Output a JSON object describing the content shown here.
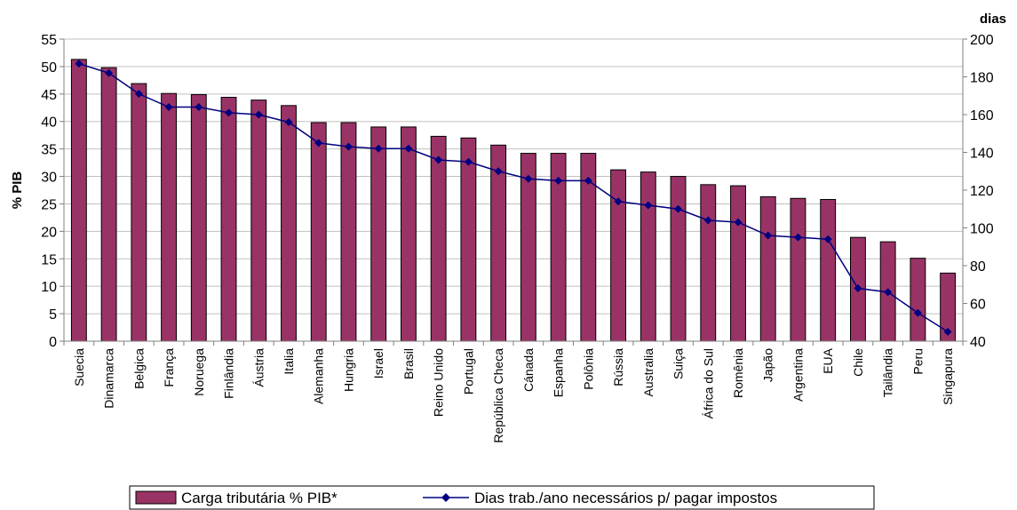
{
  "colors": {
    "bar": "#993366",
    "line": "#000080",
    "axis": "#808080",
    "grid": "#c0c0c0"
  },
  "chart_data": {
    "type": "bar",
    "categories": [
      "Suecia",
      "Dinamarca",
      "Belgica",
      "França",
      "Noruega",
      "Finlândia",
      "Áustria",
      "Italia",
      "Alemanha",
      "Hungria",
      "Israel",
      "Brasil",
      "Reino Unido",
      "Portugal",
      "República Checa",
      "Cánada",
      "Espanha",
      "Polônia",
      "Rússia",
      "Australia",
      "Suiça",
      "África do Sul",
      "Romênia",
      "Japão",
      "Argentina",
      "EUA",
      "Chile",
      "Tailândia",
      "Peru",
      "Singapura"
    ],
    "series": [
      {
        "name": "Carga tributária % PIB*",
        "type": "bar",
        "axis": "left",
        "values": [
          51.3,
          49.8,
          46.9,
          45.1,
          44.9,
          44.4,
          43.9,
          42.9,
          39.8,
          39.8,
          39.0,
          39.0,
          37.3,
          37.0,
          35.7,
          34.2,
          34.2,
          34.2,
          31.2,
          30.8,
          30.0,
          28.5,
          28.3,
          26.3,
          26.0,
          25.8,
          18.9,
          18.1,
          15.1,
          12.4
        ]
      },
      {
        "name": "Dias trab./ano necessários p/ pagar impostos",
        "type": "line",
        "axis": "right",
        "values": [
          187,
          182,
          171,
          164,
          164,
          161,
          160,
          156,
          145,
          143,
          142,
          142,
          136,
          135,
          130,
          126,
          125,
          125,
          114,
          112,
          110,
          104,
          103,
          96,
          95,
          94,
          68,
          66,
          55,
          45
        ]
      }
    ],
    "ylabel": "% PIB",
    "y2label": "dias",
    "ylim": [
      0,
      55
    ],
    "y2lim": [
      40,
      200
    ],
    "yticks": [
      "0",
      "5",
      "10",
      "15",
      "20",
      "25",
      "30",
      "35",
      "40",
      "45",
      "50",
      "55"
    ],
    "y2ticks": [
      "40",
      "60",
      "80",
      "100",
      "120",
      "140",
      "160",
      "180",
      "200"
    ],
    "grid": true,
    "legend": "bottom"
  }
}
